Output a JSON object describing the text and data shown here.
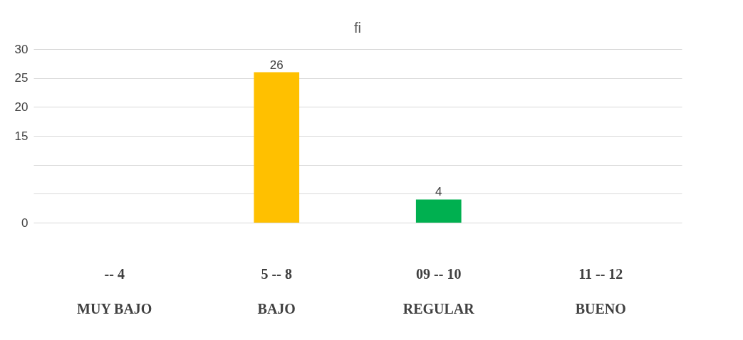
{
  "chart_data": {
    "type": "bar",
    "title": "fi",
    "categories": [
      "-- 4\nMUY BAJO",
      "5 -- 8\nBAJO",
      "09 -- 10\nREGULAR",
      "11 -- 12\nBUENO"
    ],
    "values": [
      0,
      26,
      4,
      0
    ],
    "colors": [
      "#ffc000",
      "#ffc000",
      "#00b050",
      "#00b050"
    ],
    "value_labels": [
      null,
      "26",
      "4",
      null
    ],
    "ylim": [
      0,
      30
    ],
    "yticks": [
      0,
      {
        "value": 5,
        "label": null
      },
      {
        "value": 10,
        "label": null
      },
      15,
      20,
      25,
      30
    ],
    "grid": "y"
  }
}
